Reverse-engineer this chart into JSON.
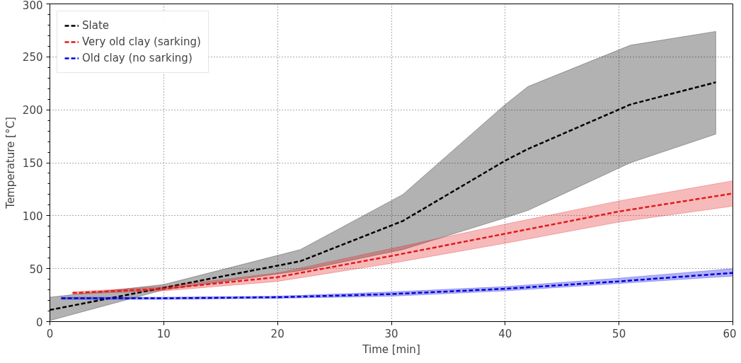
{
  "chart_data": {
    "type": "line",
    "xlabel": "Time [min]",
    "ylabel": "Temperature [°C]",
    "xlim": [
      0,
      60
    ],
    "ylim": [
      0,
      300
    ],
    "xticks": [
      0,
      10,
      20,
      30,
      40,
      50,
      60
    ],
    "yticks": [
      0,
      50,
      100,
      150,
      200,
      250,
      300
    ],
    "grid": true,
    "legend": "top left",
    "line_style": "dashed",
    "marker": "none",
    "series": [
      {
        "name": "Slate",
        "color": "#000000",
        "x": [
          0,
          10,
          22,
          31,
          40,
          42,
          51,
          58.5
        ],
        "values": [
          11,
          32,
          57,
          95,
          152,
          163,
          205,
          226
        ],
        "lower": [
          1,
          30,
          48,
          68,
          98,
          105,
          150,
          177
        ],
        "upper": [
          23,
          35,
          68,
          120,
          205,
          222,
          261,
          274
        ]
      },
      {
        "name": "Very old clay (sarking)",
        "color": "#e31a1c",
        "x": [
          2,
          10,
          20,
          30,
          40,
          50,
          60
        ],
        "values": [
          27,
          31,
          42,
          62,
          83,
          104,
          121
        ],
        "lower": [
          26,
          29,
          38,
          55,
          74,
          94,
          109
        ],
        "upper": [
          28,
          33,
          46,
          69,
          92,
          114,
          133
        ]
      },
      {
        "name": "Old clay (no sarking)",
        "color": "#0000dd",
        "x": [
          1,
          10,
          20,
          30,
          40,
          50,
          60
        ],
        "values": [
          22,
          22,
          23,
          26,
          31,
          38,
          46
        ],
        "lower": [
          21,
          21,
          22,
          24,
          29,
          36,
          43
        ],
        "upper": [
          23,
          23,
          24,
          28,
          33,
          41,
          50
        ]
      }
    ]
  }
}
